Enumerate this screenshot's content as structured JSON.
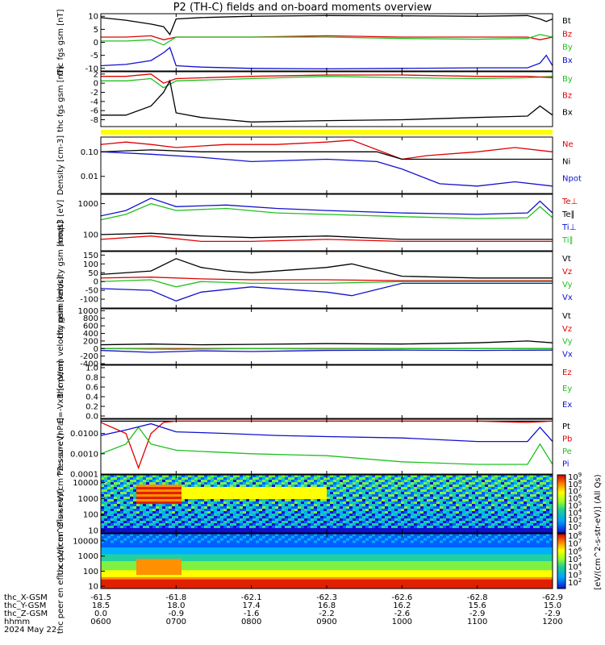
{
  "title": "P2 (TH-C) fields and on-board moments overview",
  "colors": {
    "black": "#000000",
    "red": "#e00000",
    "green": "#20c020",
    "blue": "#1010d0",
    "yellow": "#ffff00"
  },
  "x_range": [
    0,
    360
  ],
  "x_ticks": [
    0,
    60,
    120,
    180,
    240,
    300,
    360
  ],
  "bottom_rows": [
    {
      "label": "thc_X-GSM",
      "values": [
        "-61.5",
        "-61.8",
        "-62.1",
        "-62.3",
        "-62.6",
        "-62.8",
        "-62.9"
      ]
    },
    {
      "label": "thc_Y-GSM",
      "values": [
        "18.5",
        "18.0",
        "17.4",
        "16.8",
        "16.2",
        "15.6",
        "15.0"
      ]
    },
    {
      "label": "thc_Z-GSM",
      "values": [
        "0.0",
        "-0.9",
        "-1.6",
        "-2.2",
        "-2.6",
        "-2.9",
        "-2.9"
      ]
    },
    {
      "label": "hhmm",
      "values": [
        "0600",
        "0700",
        "0800",
        "0900",
        "1000",
        "1100",
        "1200"
      ]
    }
  ],
  "date_label": "2024 May 22",
  "colorbar_label": "[eV/(cm^2-s-str-eV)] (All Qs)",
  "colorbar_ticks": [
    "10^9",
    "10^8",
    "10^7",
    "10^6",
    "10^5",
    "10^4",
    "10^3",
    "10^2"
  ],
  "colorbar_ticks2": [
    "10^8",
    "10^7",
    "10^6",
    "10^5",
    "10^4",
    "10^3",
    "10^2"
  ],
  "chart_data": [
    {
      "type": "line",
      "ylabel": "thc fgs gsm [nT]",
      "ylim": [
        -11,
        11
      ],
      "yticks": [
        "10",
        "5",
        "0",
        "-5",
        "-10"
      ],
      "ytick_vals": [
        10,
        5,
        0,
        -5,
        -10
      ],
      "series": [
        {
          "name": "Bt",
          "color": "#000000",
          "x": [
            0,
            20,
            40,
            50,
            55,
            60,
            80,
            120,
            180,
            240,
            300,
            340,
            350,
            355,
            360
          ],
          "y": [
            9.5,
            8.5,
            7,
            6,
            3,
            9,
            9.5,
            10,
            10.3,
            10.2,
            10,
            10.3,
            9,
            8,
            9
          ]
        },
        {
          "name": "Bz",
          "color": "#e00000",
          "x": [
            0,
            20,
            40,
            50,
            60,
            120,
            180,
            240,
            300,
            340,
            350,
            360
          ],
          "y": [
            2,
            2,
            2.5,
            1,
            2,
            2,
            2.5,
            2,
            2,
            2,
            1,
            2
          ]
        },
        {
          "name": "By",
          "color": "#20c020",
          "x": [
            0,
            20,
            40,
            50,
            60,
            120,
            180,
            240,
            300,
            340,
            350,
            360
          ],
          "y": [
            0.5,
            0.5,
            1,
            -1,
            2,
            2,
            2,
            1.5,
            1.2,
            1.5,
            3,
            2
          ]
        },
        {
          "name": "Bx",
          "color": "#1010d0",
          "x": [
            0,
            20,
            40,
            50,
            55,
            60,
            80,
            120,
            180,
            240,
            300,
            340,
            350,
            355,
            360
          ],
          "y": [
            -9,
            -8.5,
            -7,
            -4,
            -2,
            -9,
            -9.5,
            -10,
            -10.2,
            -10,
            -9.8,
            -9.8,
            -8,
            -5,
            -9
          ]
        }
      ]
    },
    {
      "type": "line",
      "ylabel": "thc fgs gsm [nT]",
      "ylim": [
        -9.5,
        2.5
      ],
      "yticks": [
        "2",
        "0",
        "-2",
        "-4",
        "-6",
        "-8"
      ],
      "ytick_vals": [
        2,
        0,
        -2,
        -4,
        -6,
        -8
      ],
      "series": [
        {
          "name": "By",
          "color": "#20c020",
          "x": [
            0,
            20,
            40,
            50,
            60,
            120,
            180,
            240,
            300,
            340,
            360
          ],
          "y": [
            0.5,
            0.5,
            1,
            -1,
            0.5,
            1,
            1.5,
            1.2,
            1,
            1.2,
            1.5
          ]
        },
        {
          "name": "Bz",
          "color": "#e00000",
          "x": [
            0,
            20,
            40,
            50,
            60,
            120,
            180,
            240,
            300,
            340,
            360
          ],
          "y": [
            1.5,
            1.5,
            2,
            0,
            1,
            1.5,
            1.8,
            1.8,
            1.5,
            1.5,
            1.2
          ]
        },
        {
          "name": "Bx",
          "color": "#000000",
          "x": [
            0,
            20,
            40,
            50,
            55,
            60,
            80,
            120,
            180,
            240,
            300,
            340,
            350,
            360
          ],
          "y": [
            -7,
            -7,
            -5,
            -2,
            0.5,
            -6.5,
            -7.5,
            -8.5,
            -8.2,
            -8,
            -7.5,
            -7.2,
            -5,
            -7
          ]
        }
      ]
    },
    {
      "type": "line",
      "ylabel": "Density [cm-3]",
      "yscale": "log",
      "ylim": [
        0.002,
        0.4
      ],
      "yticks": [
        "0.10",
        "0.01"
      ],
      "ytick_vals": [
        0.1,
        0.01
      ],
      "series": [
        {
          "name": "Ne",
          "color": "#e00000",
          "x": [
            0,
            20,
            40,
            60,
            100,
            140,
            180,
            200,
            240,
            260,
            300,
            330,
            360
          ],
          "y": [
            0.2,
            0.25,
            0.2,
            0.15,
            0.2,
            0.2,
            0.25,
            0.3,
            0.05,
            0.07,
            0.1,
            0.15,
            0.1
          ]
        },
        {
          "name": "Ni",
          "color": "#000000",
          "x": [
            0,
            40,
            80,
            120,
            180,
            220,
            240,
            300,
            360
          ],
          "y": [
            0.1,
            0.12,
            0.1,
            0.1,
            0.1,
            0.1,
            0.05,
            0.05,
            0.05
          ]
        },
        {
          "name": "Npot",
          "color": "#1010d0",
          "x": [
            0,
            40,
            80,
            120,
            180,
            220,
            240,
            270,
            300,
            330,
            360
          ],
          "y": [
            0.1,
            0.08,
            0.06,
            0.04,
            0.05,
            0.04,
            0.02,
            0.005,
            0.004,
            0.006,
            0.004
          ]
        }
      ]
    },
    {
      "type": "line",
      "ylabel": "moqt3 [eV]",
      "yscale": "log",
      "ylim": [
        30,
        2000
      ],
      "yticks": [
        "1000",
        "100"
      ],
      "ytick_vals": [
        1000,
        100
      ],
      "series": [
        {
          "name": "Te⊥",
          "color": "#e00000",
          "x": [
            0,
            40,
            80,
            120,
            180,
            240,
            300,
            360
          ],
          "y": [
            70,
            90,
            60,
            60,
            70,
            60,
            60,
            60
          ]
        },
        {
          "name": "Te∥",
          "color": "#000000",
          "x": [
            0,
            40,
            80,
            120,
            180,
            240,
            300,
            360
          ],
          "y": [
            100,
            110,
            90,
            80,
            90,
            70,
            70,
            70
          ]
        },
        {
          "name": "Ti⊥",
          "color": "#1010d0",
          "x": [
            0,
            20,
            40,
            60,
            100,
            140,
            180,
            240,
            300,
            340,
            350,
            360
          ],
          "y": [
            400,
            600,
            1500,
            800,
            900,
            700,
            600,
            500,
            450,
            500,
            1200,
            500
          ]
        },
        {
          "name": "Ti∥",
          "color": "#20c020",
          "x": [
            0,
            20,
            40,
            60,
            100,
            140,
            180,
            240,
            300,
            340,
            350,
            360
          ],
          "y": [
            300,
            450,
            1000,
            600,
            700,
            500,
            450,
            380,
            330,
            350,
            800,
            350
          ]
        }
      ]
    },
    {
      "type": "line",
      "ylabel": "thc peim velocity gsm [km/s]",
      "ylim": [
        -150,
        170
      ],
      "yticks": [
        "150",
        "100",
        "50",
        "0",
        "-50",
        "-100"
      ],
      "ytick_vals": [
        150,
        100,
        50,
        0,
        -50,
        -100
      ],
      "series": [
        {
          "name": "Vt",
          "color": "#000000",
          "x": [
            0,
            40,
            60,
            80,
            100,
            120,
            180,
            200,
            240,
            300,
            340,
            360
          ],
          "y": [
            40,
            60,
            130,
            80,
            60,
            50,
            80,
            100,
            30,
            20,
            20,
            20
          ]
        },
        {
          "name": "Vz",
          "color": "#e00000",
          "x": [
            0,
            40,
            80,
            120,
            180,
            240,
            300,
            360
          ],
          "y": [
            20,
            25,
            15,
            10,
            10,
            5,
            5,
            5
          ]
        },
        {
          "name": "Vy",
          "color": "#20c020",
          "x": [
            0,
            40,
            60,
            80,
            120,
            180,
            240,
            300,
            360
          ],
          "y": [
            0,
            10,
            -30,
            0,
            -10,
            -10,
            0,
            0,
            0
          ]
        },
        {
          "name": "Vx",
          "color": "#1010d0",
          "x": [
            0,
            40,
            60,
            80,
            120,
            180,
            200,
            240,
            300,
            360
          ],
          "y": [
            -40,
            -50,
            -110,
            -60,
            -30,
            -60,
            -80,
            -10,
            -10,
            -10
          ]
        }
      ]
    },
    {
      "type": "line",
      "ylabel": "thc peem velocity gsm [km/s]",
      "ylim": [
        -420,
        1050
      ],
      "yticks": [
        "1000",
        "800",
        "600",
        "400",
        "200",
        "0",
        "-200",
        "-400"
      ],
      "ytick_vals": [
        1000,
        800,
        600,
        400,
        200,
        0,
        -200,
        -400
      ],
      "series": [
        {
          "name": "Vt",
          "color": "#000000",
          "x": [
            0,
            40,
            80,
            120,
            180,
            240,
            300,
            340,
            360
          ],
          "y": [
            100,
            120,
            100,
            110,
            130,
            120,
            150,
            200,
            150
          ]
        },
        {
          "name": "Vz",
          "color": "#e00000",
          "x": [
            0,
            60,
            120,
            180,
            240,
            300,
            360
          ],
          "y": [
            0,
            0,
            0,
            0,
            0,
            0,
            0
          ]
        },
        {
          "name": "Vy",
          "color": "#20c020",
          "x": [
            0,
            60,
            120,
            180,
            240,
            300,
            360
          ],
          "y": [
            0,
            -20,
            0,
            -10,
            0,
            0,
            0
          ]
        },
        {
          "name": "Vx",
          "color": "#1010d0",
          "x": [
            0,
            40,
            80,
            120,
            180,
            240,
            300,
            360
          ],
          "y": [
            -50,
            -100,
            -60,
            -80,
            -50,
            -40,
            -50,
            -40
          ]
        }
      ]
    },
    {
      "type": "line",
      "ylabel": "E=-VxB [mV/m]",
      "ylim": [
        -0.05,
        1.05
      ],
      "yticks": [
        "1.0",
        "0.8",
        "0.6",
        "0.4",
        "0.2",
        "0.0"
      ],
      "ytick_vals": [
        1,
        0.8,
        0.6,
        0.4,
        0.2,
        0
      ],
      "series": [
        {
          "name": "Ez",
          "color": "#e00000",
          "x": [],
          "y": []
        },
        {
          "name": "Ey",
          "color": "#20c020",
          "x": [],
          "y": []
        },
        {
          "name": "Ex",
          "color": "#1010d0",
          "x": [],
          "y": []
        }
      ]
    },
    {
      "type": "line",
      "ylabel": "Pressure [nPa]",
      "yscale": "log",
      "ylim": [
        0.0001,
        0.05
      ],
      "yticks": [
        "0.0100",
        "0.0010",
        "0.0001"
      ],
      "ytick_vals": [
        0.01,
        0.001,
        0.0001
      ],
      "series": [
        {
          "name": "Pt",
          "color": "#000000",
          "x": [
            0,
            60,
            120,
            180,
            240,
            300,
            360
          ],
          "y": [
            0.04,
            0.04,
            0.04,
            0.04,
            0.04,
            0.04,
            0.04
          ]
        },
        {
          "name": "Pb",
          "color": "#e00000",
          "x": [
            0,
            20,
            30,
            40,
            50,
            60,
            120,
            180,
            240,
            300,
            340,
            360
          ],
          "y": [
            0.035,
            0.01,
            0.0002,
            0.01,
            0.035,
            0.04,
            0.04,
            0.04,
            0.04,
            0.04,
            0.035,
            0.04
          ]
        },
        {
          "name": "Pe",
          "color": "#20c020",
          "x": [
            0,
            20,
            30,
            40,
            60,
            120,
            180,
            240,
            300,
            340,
            350,
            360
          ],
          "y": [
            0.001,
            0.003,
            0.02,
            0.003,
            0.0015,
            0.001,
            0.0008,
            0.0004,
            0.0003,
            0.0003,
            0.003,
            0.0003
          ]
        },
        {
          "name": "Pi",
          "color": "#1010d0",
          "x": [
            0,
            20,
            40,
            60,
            100,
            140,
            180,
            240,
            300,
            340,
            350,
            360
          ],
          "y": [
            0.008,
            0.015,
            0.03,
            0.012,
            0.01,
            0.008,
            0.007,
            0.006,
            0.004,
            0.004,
            0.02,
            0.004
          ]
        }
      ]
    },
    {
      "type": "heatmap",
      "ylabel": "thc peir en eflux eV/(cm^2-s-sr-eV)",
      "yscale": "log",
      "ylim": [
        7,
        30000
      ],
      "yticks": [
        "10000",
        "1000",
        "100",
        "10"
      ],
      "ytick_vals": [
        10000,
        1000,
        100,
        10
      ]
    },
    {
      "type": "heatmap",
      "ylabel": "thc peer en eflux eV/(cm^2-s-sr-eV)",
      "yscale": "log",
      "ylim": [
        7,
        30000
      ],
      "yticks": [
        "10000",
        "1000",
        "100",
        "10"
      ],
      "ytick_vals": [
        10000,
        1000,
        100,
        10
      ]
    }
  ]
}
